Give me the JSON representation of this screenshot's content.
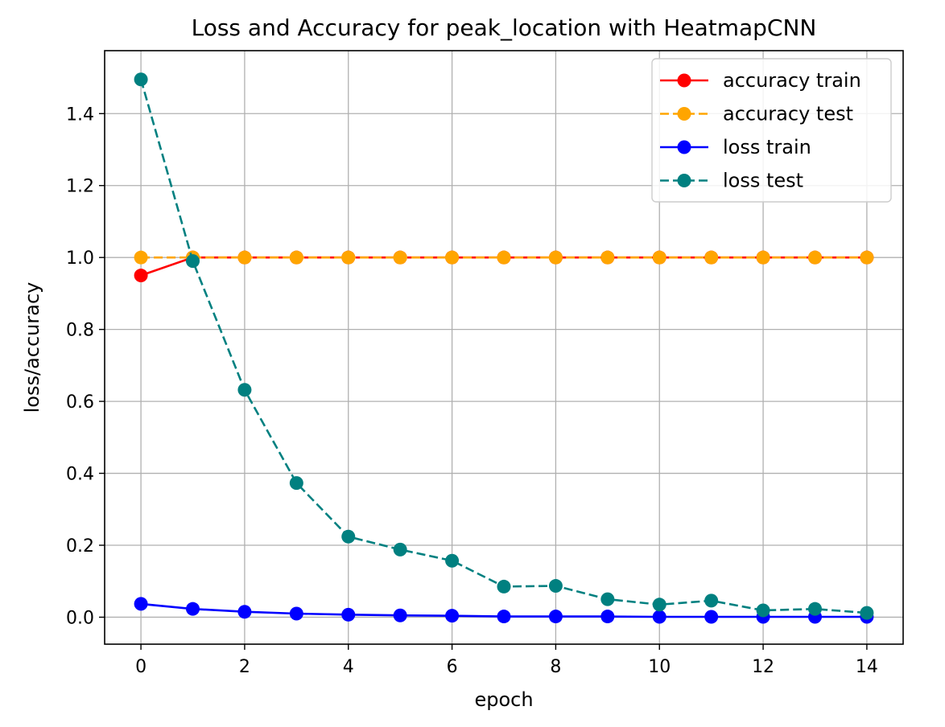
{
  "chart_data": {
    "type": "line",
    "title": "Loss and Accuracy for peak_location with HeatmapCNN",
    "xlabel": "epoch",
    "ylabel": "loss/accuracy",
    "xlim": [
      -0.7,
      14.7
    ],
    "ylim": [
      -0.075,
      1.575
    ],
    "xticks": [
      0,
      2,
      4,
      6,
      8,
      10,
      12,
      14
    ],
    "yticks": [
      0.0,
      0.2,
      0.4,
      0.6,
      0.8,
      1.0,
      1.2,
      1.4
    ],
    "ytick_labels": [
      "0.0",
      "0.2",
      "0.4",
      "0.6",
      "0.8",
      "1.0",
      "1.2",
      "1.4"
    ],
    "grid": true,
    "legend_position": "top-right",
    "x": [
      0,
      1,
      2,
      3,
      4,
      5,
      6,
      7,
      8,
      9,
      10,
      11,
      12,
      13,
      14
    ],
    "series": [
      {
        "name": "accuracy train",
        "color": "#ff0000",
        "linestyle": "solid",
        "marker": "circle",
        "values": [
          0.95,
          1.0,
          1.0,
          1.0,
          1.0,
          1.0,
          1.0,
          1.0,
          1.0,
          1.0,
          1.0,
          1.0,
          1.0,
          1.0,
          1.0
        ]
      },
      {
        "name": "accuracy test",
        "color": "#ffa500",
        "linestyle": "dashed",
        "marker": "circle",
        "values": [
          1.0,
          1.0,
          1.0,
          1.0,
          1.0,
          1.0,
          1.0,
          1.0,
          1.0,
          1.0,
          1.0,
          1.0,
          1.0,
          1.0,
          1.0
        ]
      },
      {
        "name": "loss train",
        "color": "#0000ff",
        "linestyle": "solid",
        "marker": "circle",
        "values": [
          0.037,
          0.023,
          0.015,
          0.01,
          0.007,
          0.005,
          0.004,
          0.002,
          0.002,
          0.002,
          0.001,
          0.001,
          0.001,
          0.001,
          0.001
        ]
      },
      {
        "name": "loss test",
        "color": "#008080",
        "linestyle": "dashed",
        "marker": "circle",
        "values": [
          1.495,
          0.99,
          0.632,
          0.373,
          0.224,
          0.188,
          0.157,
          0.085,
          0.087,
          0.05,
          0.035,
          0.046,
          0.019,
          0.023,
          0.012
        ]
      }
    ]
  }
}
